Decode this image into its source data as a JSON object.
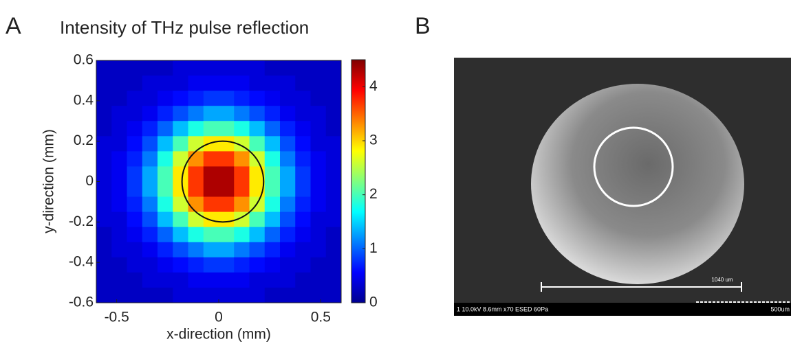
{
  "panel_labels": {
    "a": "A",
    "b": "B"
  },
  "chart_data": {
    "type": "heatmap",
    "title": "Intensity of THz pulse reflection",
    "x_label": "x-direction (mm)",
    "y_label": "y-direction (mm)",
    "xlim": [
      -0.6,
      0.6
    ],
    "ylim": [
      -0.6,
      0.6
    ],
    "xticks": [
      -0.5,
      0,
      0.5
    ],
    "yticks": [
      -0.6,
      -0.4,
      -0.2,
      0,
      0.2,
      0.4,
      0.6
    ],
    "zlim": [
      0,
      4.5
    ],
    "colorbar_ticks": [
      0,
      1,
      2,
      3,
      4
    ],
    "colormap": "jet",
    "z": [
      [
        0.3,
        0.3,
        0.3,
        0.3,
        0.3,
        0.4,
        0.4,
        0.4,
        0.4,
        0.4,
        0.4,
        0.3,
        0.3,
        0.3,
        0.3,
        0.3
      ],
      [
        0.3,
        0.3,
        0.3,
        0.4,
        0.4,
        0.4,
        0.5,
        0.5,
        0.5,
        0.5,
        0.4,
        0.4,
        0.4,
        0.3,
        0.3,
        0.3
      ],
      [
        0.3,
        0.3,
        0.4,
        0.4,
        0.5,
        0.6,
        0.7,
        0.8,
        0.8,
        0.7,
        0.6,
        0.5,
        0.4,
        0.4,
        0.3,
        0.3
      ],
      [
        0.3,
        0.4,
        0.4,
        0.5,
        0.7,
        0.9,
        1.1,
        1.3,
        1.3,
        1.1,
        0.9,
        0.7,
        0.5,
        0.4,
        0.4,
        0.3
      ],
      [
        0.3,
        0.4,
        0.5,
        0.7,
        1.0,
        1.4,
        1.8,
        2.0,
        2.0,
        1.8,
        1.4,
        1.0,
        0.7,
        0.5,
        0.4,
        0.3
      ],
      [
        0.4,
        0.4,
        0.6,
        0.9,
        1.4,
        2.0,
        2.6,
        2.9,
        2.9,
        2.6,
        2.0,
        1.4,
        0.9,
        0.6,
        0.4,
        0.4
      ],
      [
        0.4,
        0.5,
        0.7,
        1.1,
        1.8,
        2.6,
        3.3,
        3.7,
        3.7,
        3.3,
        2.6,
        1.8,
        1.1,
        0.7,
        0.5,
        0.4
      ],
      [
        0.4,
        0.5,
        0.8,
        1.3,
        2.0,
        2.9,
        3.7,
        4.3,
        4.3,
        3.7,
        2.9,
        2.0,
        1.3,
        0.8,
        0.5,
        0.4
      ],
      [
        0.4,
        0.5,
        0.8,
        1.3,
        2.0,
        2.9,
        3.7,
        4.3,
        4.3,
        3.7,
        2.9,
        2.0,
        1.3,
        0.8,
        0.5,
        0.4
      ],
      [
        0.4,
        0.5,
        0.7,
        1.1,
        1.8,
        2.6,
        3.3,
        3.7,
        3.7,
        3.3,
        2.6,
        1.8,
        1.1,
        0.7,
        0.5,
        0.4
      ],
      [
        0.4,
        0.4,
        0.6,
        0.9,
        1.4,
        2.0,
        2.6,
        2.9,
        2.9,
        2.6,
        2.0,
        1.4,
        0.9,
        0.6,
        0.4,
        0.4
      ],
      [
        0.3,
        0.4,
        0.5,
        0.7,
        1.0,
        1.4,
        1.8,
        2.0,
        2.0,
        1.8,
        1.4,
        1.0,
        0.7,
        0.5,
        0.4,
        0.3
      ],
      [
        0.3,
        0.4,
        0.4,
        0.5,
        0.7,
        0.9,
        1.1,
        1.3,
        1.3,
        1.1,
        0.9,
        0.7,
        0.5,
        0.4,
        0.4,
        0.3
      ],
      [
        0.3,
        0.3,
        0.4,
        0.4,
        0.5,
        0.6,
        0.7,
        0.8,
        0.8,
        0.7,
        0.6,
        0.5,
        0.4,
        0.4,
        0.3,
        0.3
      ],
      [
        0.3,
        0.3,
        0.3,
        0.4,
        0.4,
        0.4,
        0.5,
        0.5,
        0.5,
        0.5,
        0.4,
        0.4,
        0.4,
        0.3,
        0.3,
        0.3
      ],
      [
        0.3,
        0.3,
        0.3,
        0.3,
        0.3,
        0.4,
        0.4,
        0.4,
        0.4,
        0.4,
        0.4,
        0.3,
        0.3,
        0.3,
        0.3,
        0.3
      ]
    ],
    "circle": {
      "x": 0.02,
      "y": 0,
      "r": 0.2
    }
  },
  "sem_image": {
    "scale_bar_label": "1040 um",
    "info": "1 10.0kV 8.6mm x70 ESED 60Pa",
    "scale_label": "500um"
  }
}
